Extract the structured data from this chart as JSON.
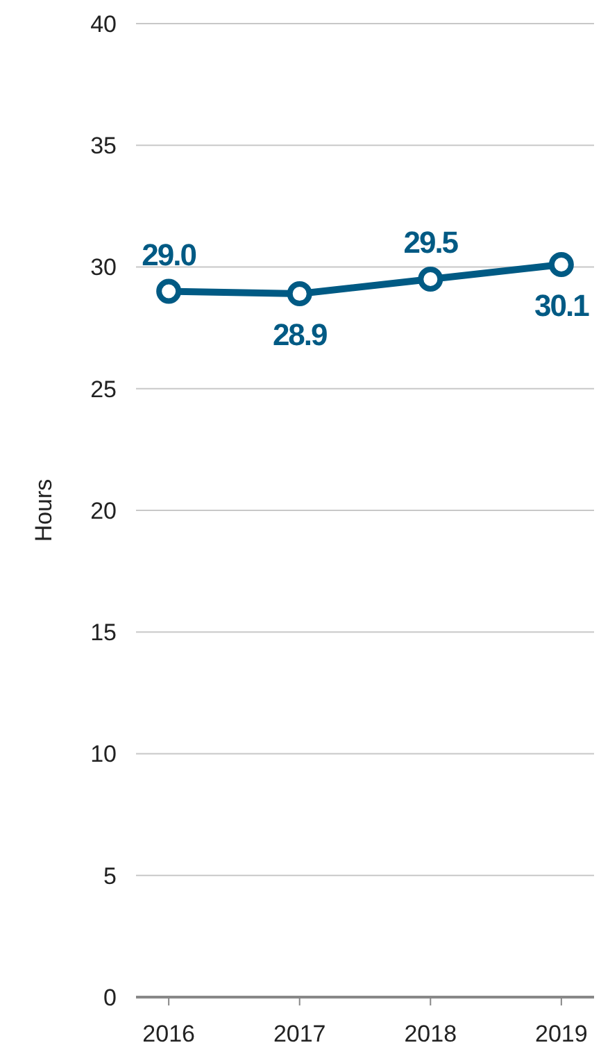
{
  "chart_data": {
    "type": "line",
    "ylabel": "Hours",
    "categories": [
      "2016",
      "2017",
      "2018",
      "2019"
    ],
    "series": [
      {
        "color": "#005a84",
        "values": [
          29.0,
          28.9,
          29.5,
          30.1
        ],
        "value_labels": [
          "29.0",
          "28.9",
          "29.5",
          "30.1"
        ]
      }
    ],
    "ylim": [
      0,
      40
    ],
    "yticks": [
      0,
      5,
      10,
      15,
      20,
      25,
      30,
      35,
      40
    ],
    "grid": "y",
    "marker": "circle",
    "line_style": "solid"
  }
}
